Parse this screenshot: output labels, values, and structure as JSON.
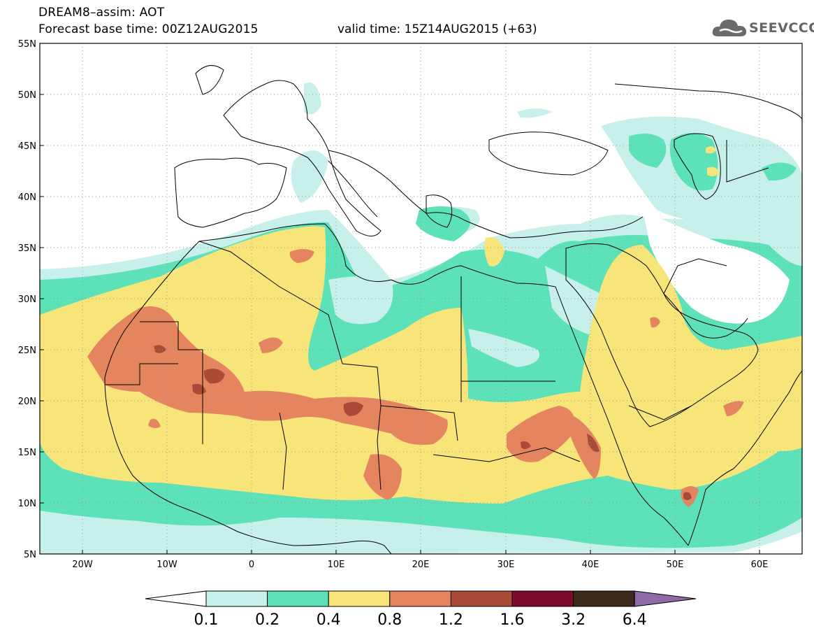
{
  "header": {
    "title": "DREAM8–assim: AOT",
    "base_time": "Forecast base time: 00Z12AUG2015",
    "valid_time": "valid time: 15Z14AUG2015 (+63)"
  },
  "logo": {
    "text": "SEEVCCC",
    "icon": "cloud-icon"
  },
  "map": {
    "projection": "lat-lon",
    "lon_range": [
      -25,
      65
    ],
    "lat_range": [
      5,
      55
    ],
    "lat_ticks": [
      "55N",
      "50N",
      "45N",
      "40N",
      "35N",
      "30N",
      "25N",
      "20N",
      "15N",
      "10N",
      "5N"
    ],
    "lon_ticks": [
      "20W",
      "10W",
      "0",
      "10E",
      "20E",
      "30E",
      "40E",
      "50E",
      "60E"
    ],
    "gridlines": "dotted"
  },
  "legend": {
    "labels": [
      "0.1",
      "0.2",
      "0.4",
      "0.8",
      "1.2",
      "1.6",
      "3.2",
      "6.4"
    ],
    "colors": [
      "#ffffff",
      "#c8f0ea",
      "#5ce1b8",
      "#f7e57a",
      "#e4855f",
      "#aa4b3a",
      "#7d0a2c",
      "#3d2a1a",
      "#8e6ba6"
    ]
  }
}
